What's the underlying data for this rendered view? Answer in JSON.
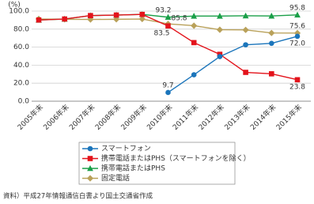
{
  "chart_data": {
    "type": "line",
    "y_unit": "(%)",
    "categories": [
      "2005年末",
      "2006年末",
      "2007年末",
      "2008年末",
      "2009年末",
      "2010年末",
      "2011年末",
      "2012年末",
      "2013年末",
      "2014年末",
      "2015年末"
    ],
    "ylim": [
      0,
      100
    ],
    "yticks": [
      {
        "value": 0,
        "label": "0.0"
      },
      {
        "value": 20,
        "label": "20.0"
      },
      {
        "value": 40,
        "label": "40.0"
      },
      {
        "value": 60,
        "label": "60.0"
      },
      {
        "value": 80,
        "label": "80.0"
      },
      {
        "value": 100,
        "label": "100.0"
      }
    ],
    "grid": true,
    "series": [
      {
        "name": "スマートフォン",
        "color": "#1b75bb",
        "marker": "circle",
        "values": [
          null,
          null,
          null,
          null,
          null,
          9.7,
          29.3,
          49.5,
          62.6,
          64.2,
          72.0
        ],
        "value_labels": [
          null,
          null,
          null,
          null,
          null,
          "9.7",
          null,
          null,
          null,
          null,
          "72.0"
        ]
      },
      {
        "name": "携帯電話またはPHS（スマートフォンを除く）",
        "color": "#e3131b",
        "marker": "square",
        "values": [
          90.1,
          91.2,
          95.0,
          95.6,
          96.3,
          83.5,
          65.0,
          52.0,
          32.0,
          30.4,
          23.8
        ],
        "value_labels": [
          null,
          null,
          null,
          null,
          null,
          "83.5",
          null,
          null,
          null,
          null,
          "23.8"
        ]
      },
      {
        "name": "携帯電話またはPHS",
        "color": "#1a9f48",
        "marker": "triangle",
        "values": [
          90.1,
          91.2,
          95.0,
          95.6,
          96.3,
          93.2,
          94.5,
          94.5,
          94.8,
          94.6,
          95.8
        ],
        "value_labels": [
          null,
          null,
          null,
          null,
          null,
          "93.2",
          null,
          null,
          null,
          null,
          "95.8"
        ]
      },
      {
        "name": "固定電話",
        "color": "#b9a15a",
        "marker": "diamond",
        "values": [
          91.2,
          90.9,
          90.7,
          90.9,
          91.2,
          85.8,
          83.8,
          79.3,
          79.1,
          75.7,
          75.6
        ],
        "value_labels": [
          null,
          null,
          null,
          null,
          null,
          "85.8",
          null,
          null,
          null,
          null,
          "75.6"
        ]
      }
    ],
    "source": "資料）平成27年情報通信白書より国土交通省作成"
  }
}
